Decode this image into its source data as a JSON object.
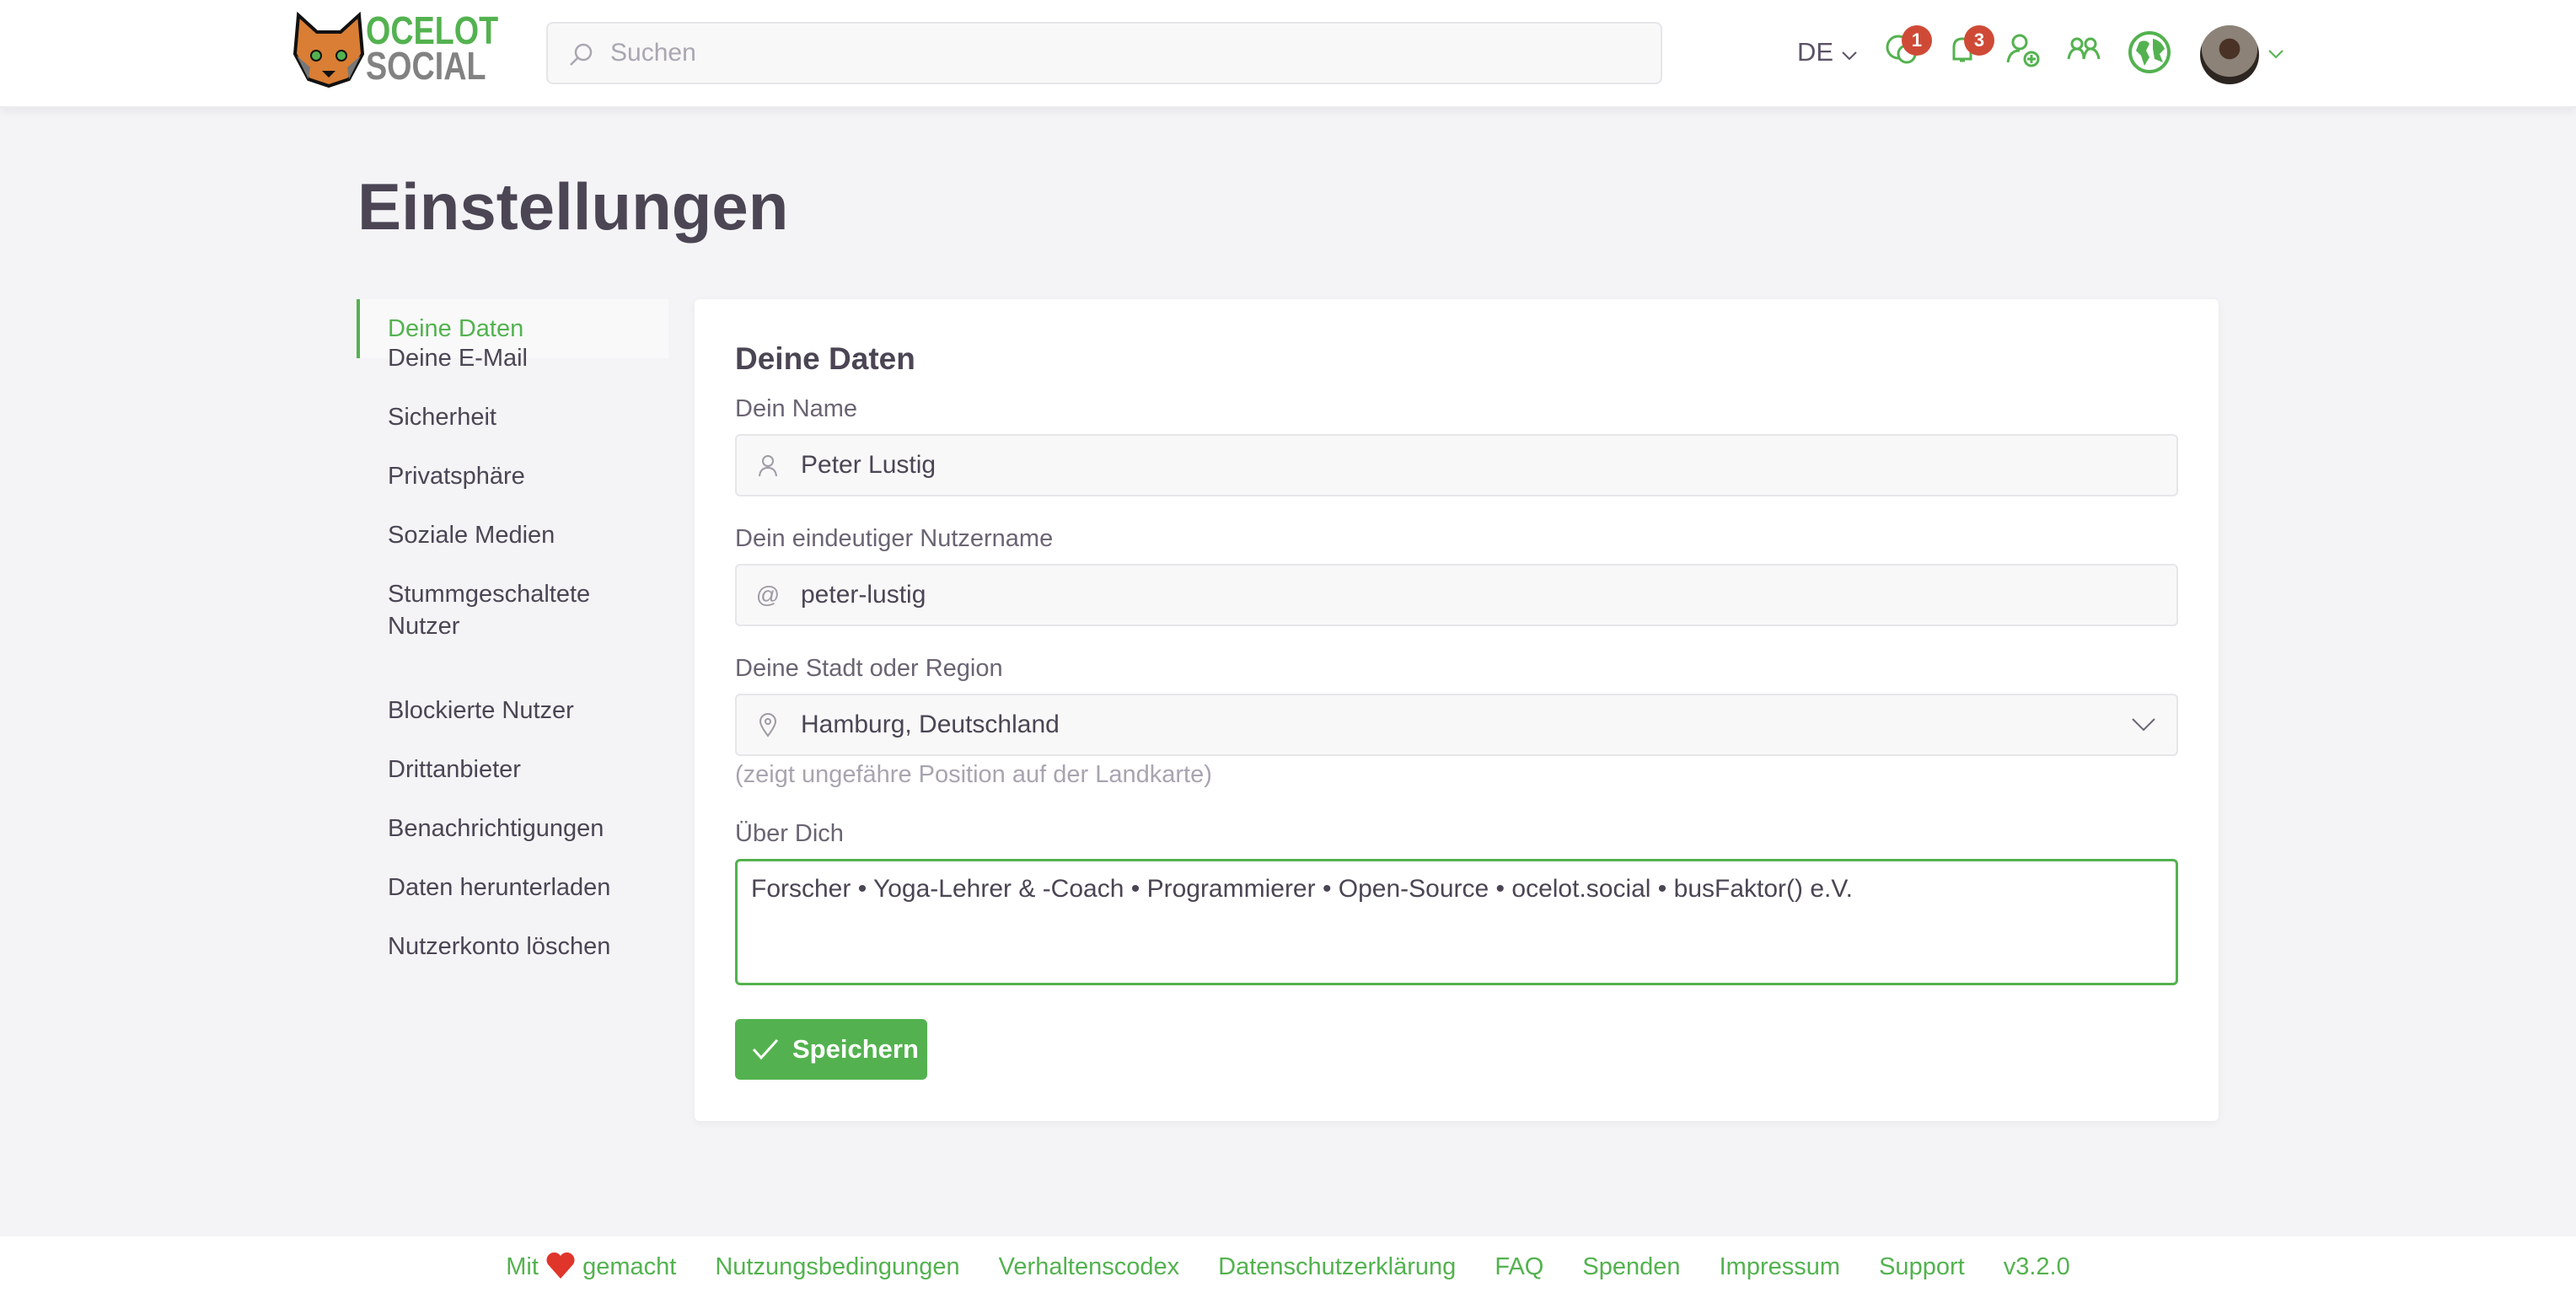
{
  "header": {
    "logo_text": [
      "OCELOT",
      "SOCIAL"
    ],
    "search_placeholder": "Suchen",
    "language": "DE",
    "chat_badge": "1",
    "notification_badge": "3"
  },
  "page_title": "Einstellungen",
  "sidebar": {
    "items": [
      {
        "label": "Deine Daten",
        "active": true
      },
      {
        "label": "Deine E-Mail"
      },
      {
        "label": "Sicherheit"
      },
      {
        "label": "Privatsphäre"
      },
      {
        "label": "Soziale Medien"
      },
      {
        "label": "Stummgeschaltete Nutzer"
      },
      {
        "label": "Blockierte Nutzer"
      },
      {
        "label": "Drittanbieter"
      },
      {
        "label": "Benachrichtigungen"
      },
      {
        "label": "Daten herunterladen"
      },
      {
        "label": "Nutzerkonto löschen"
      }
    ]
  },
  "form": {
    "title": "Deine Daten",
    "name_label": "Dein Name",
    "name_value": "Peter Lustig",
    "username_label": "Dein eindeutiger Nutzername",
    "username_value": "peter-lustig",
    "city_label": "Deine Stadt oder Region",
    "city_value": "Hamburg, Deutschland",
    "city_hint": "(zeigt ungefähre Position auf der Landkarte)",
    "about_label": "Über Dich",
    "about_value": "Forscher • Yoga-Lehrer & -Coach • Programmierer • Open-Source • ocelot.social • busFaktor() e.V.",
    "save_label": "Speichern"
  },
  "footer": {
    "made_with_prefix": "Mit",
    "made_with_suffix": "gemacht",
    "links": [
      "Nutzungsbedingungen",
      "Verhaltenscodex",
      "Datenschutzerklärung",
      "FAQ",
      "Spenden",
      "Impressum",
      "Support",
      "v3.2.0"
    ]
  },
  "colors": {
    "accent": "#53b24f",
    "badge": "#cf4a36",
    "text": "#4b4554"
  }
}
